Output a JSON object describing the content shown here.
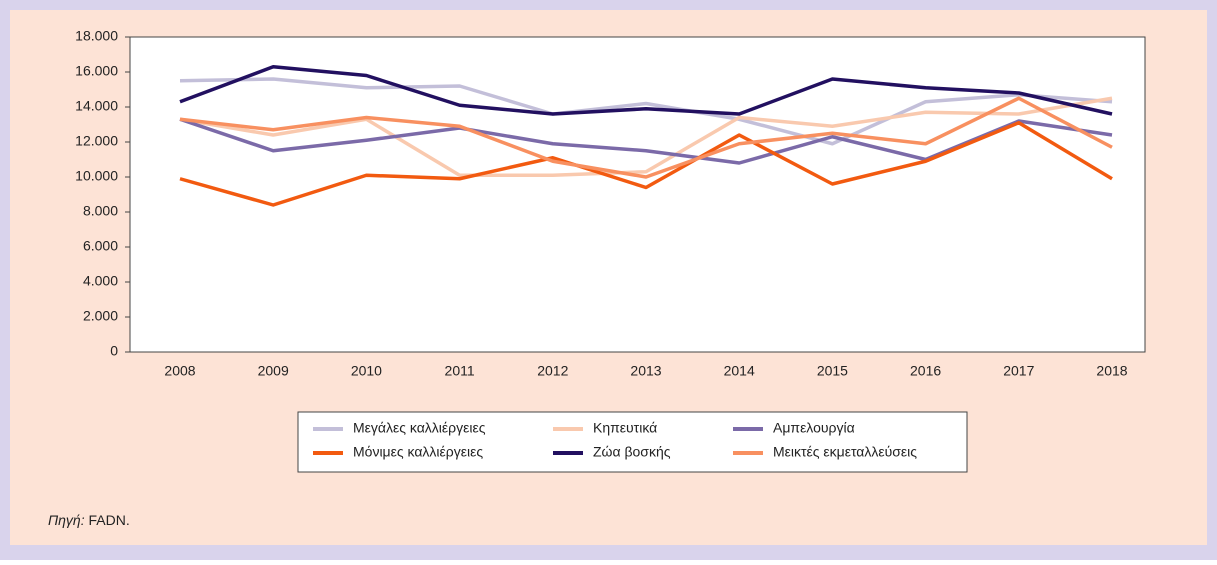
{
  "chart_data": {
    "type": "line",
    "categories": [
      "2008",
      "2009",
      "2010",
      "2011",
      "2012",
      "2013",
      "2014",
      "2015",
      "2016",
      "2017",
      "2018"
    ],
    "series": [
      {
        "name": "Μεγάλες καλλιέργειες",
        "color": "#c3bfd9",
        "values": [
          15500,
          15600,
          15100,
          15200,
          13600,
          14200,
          13300,
          11900,
          14300,
          14700,
          14300
        ]
      },
      {
        "name": "Κηπευτικά",
        "color": "#f9c9ae",
        "values": [
          13300,
          12400,
          13300,
          10100,
          10100,
          10300,
          13400,
          12900,
          13700,
          13600,
          14500
        ]
      },
      {
        "name": "Αμπελουργία",
        "color": "#7b6aa8",
        "values": [
          13300,
          11500,
          12100,
          12800,
          11900,
          11500,
          10800,
          12300,
          11000,
          13200,
          12400
        ]
      },
      {
        "name": "Μόνιμες καλλιέργειες",
        "color": "#f25a10",
        "values": [
          9900,
          8400,
          10100,
          9900,
          11100,
          9400,
          12400,
          9600,
          10900,
          13100,
          9900
        ]
      },
      {
        "name": "Ζώα βοσκής",
        "color": "#221060",
        "values": [
          14300,
          16300,
          15800,
          14100,
          13600,
          13900,
          13600,
          15600,
          15100,
          14800,
          13600
        ]
      },
      {
        "name": "Μεικτές εκμεταλλεύσεις",
        "color": "#f89060",
        "values": [
          13300,
          12700,
          13400,
          12900,
          10900,
          10000,
          11900,
          12500,
          11900,
          14500,
          11700
        ]
      }
    ],
    "ylim": [
      0,
      18000
    ],
    "yticks": [
      0,
      {
        "value": 2000,
        "label": "2.000"
      },
      {
        "value": 4000,
        "label": "4.000"
      },
      {
        "value": 6000,
        "label": "6.000"
      },
      {
        "value": 8000,
        "label": "8.000"
      },
      {
        "value": 10000,
        "label": "10.000"
      },
      {
        "value": 12000,
        "label": "12.000"
      },
      {
        "value": 14000,
        "label": "14.000"
      },
      {
        "value": 16000,
        "label": "16.000"
      },
      {
        "value": 18000,
        "label": "18.000"
      }
    ],
    "source_label": "Πηγή:",
    "source_text": "FADN."
  }
}
